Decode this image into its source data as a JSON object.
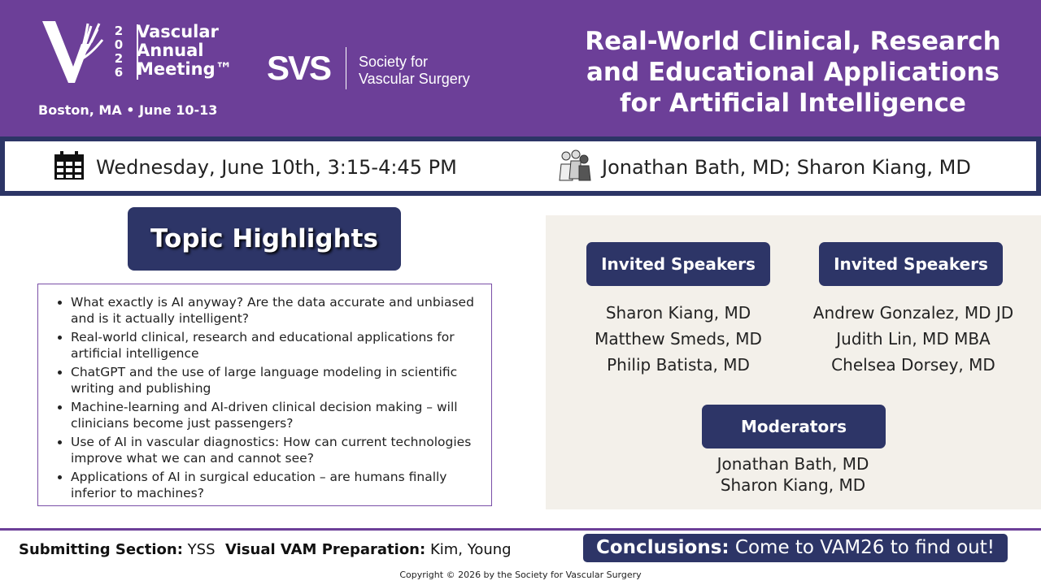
{
  "header": {
    "year_digits": [
      "2",
      "0",
      "2",
      "6"
    ],
    "meeting_name": [
      "Vascular",
      "Annual",
      "Meeting™"
    ],
    "location": "Boston, MA • June 10-13",
    "svs_logo": "SVS",
    "svs_name": [
      "Society for",
      "Vascular Surgery"
    ],
    "title": "Real-World Clinical, Research and Educational Applications for Artificial Intelligence"
  },
  "info": {
    "date_icon": "calendar-icon",
    "date": "Wednesday, June 10th, 3:15-4:45 PM",
    "people_icon": "people-group-icon",
    "organizers": "Jonathan Bath, MD; Sharon Kiang, MD"
  },
  "topics": {
    "heading": "Topic Highlights",
    "items": [
      "What exactly is AI anyway? Are the data accurate and unbiased and is it actually intelligent?",
      "Real-world clinical, research and educational applications for artificial intelligence",
      "ChatGPT and the use of large language modeling in scientific writing and publishing",
      "Machine-learning and AI-driven clinical decision making – will clinicians become just passengers?",
      "Use of AI in vascular diagnostics: How can current technologies improve what we can and cannot see?",
      "Applications of AI in surgical education – are humans finally inferior to machines?"
    ]
  },
  "speakers": {
    "group1": {
      "label": "Invited Speakers",
      "names": [
        "Sharon Kiang, MD",
        "Matthew Smeds, MD",
        "Philip Batista, MD"
      ]
    },
    "group2": {
      "label": "Invited Speakers",
      "names": [
        "Andrew Gonzalez, MD JD",
        "Judith Lin, MD MBA",
        "Chelsea Dorsey, MD"
      ]
    },
    "moderators": {
      "label": "Moderators",
      "names": [
        "Jonathan Bath, MD",
        "Sharon Kiang, MD"
      ]
    }
  },
  "footer": {
    "section_label": "Submitting Section:",
    "section_value": "YSS",
    "prep_label": "Visual VAM Preparation:",
    "prep_value": "Kim, Young",
    "conclusions_label": "Conclusions:",
    "conclusions_value": "Come to VAM26 to find out!",
    "copyright": "Copyright © 2026 by the Society for Vascular Surgery"
  },
  "colors": {
    "purple": "#6c3f98",
    "navy": "#2d3567",
    "panel": "#f3f0ea"
  }
}
